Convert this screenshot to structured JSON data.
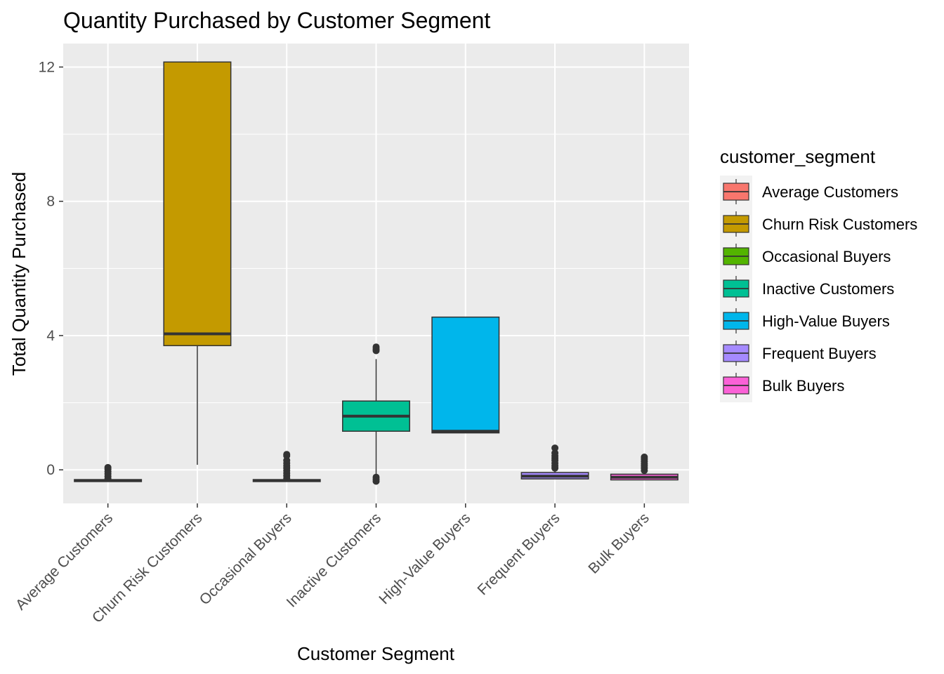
{
  "chart_data": {
    "type": "boxplot",
    "title": "Quantity Purchased by Customer Segment",
    "xlabel": "Customer Segment",
    "ylabel": "Total Quantity Purchased",
    "ylim": [
      -1.0,
      12.7
    ],
    "yticks": [
      0,
      4,
      8,
      12
    ],
    "grid": true,
    "legend": {
      "title": "customer_segment",
      "position": "right"
    },
    "categories": [
      "Average Customers",
      "Churn Risk Customers",
      "Occasional Buyers",
      "Inactive Customers",
      "High-Value Buyers",
      "Frequent Buyers",
      "Bulk Buyers"
    ],
    "series": [
      {
        "name": "Average Customers",
        "color": "#F8766D",
        "q1": -0.35,
        "median": -0.32,
        "q3": -0.29,
        "whisker_low": -0.35,
        "whisker_high": -0.29,
        "outliers": [
          -0.26,
          -0.2,
          -0.12,
          -0.05,
          0.02,
          0.07
        ]
      },
      {
        "name": "Churn Risk Customers",
        "color": "#C49A00",
        "q1": 3.7,
        "median": 4.05,
        "q3": 12.15,
        "whisker_low": 0.15,
        "whisker_high": 12.15,
        "outliers": []
      },
      {
        "name": "Occasional Buyers",
        "color": "#53B400",
        "q1": -0.35,
        "median": -0.32,
        "q3": -0.29,
        "whisker_low": -0.35,
        "whisker_high": -0.29,
        "outliers": [
          -0.25,
          -0.18,
          -0.1,
          -0.02,
          0.05,
          0.12,
          0.2,
          0.28,
          0.42,
          0.46
        ]
      },
      {
        "name": "Inactive Customers",
        "color": "#00C094",
        "q1": 1.15,
        "median": 1.6,
        "q3": 2.05,
        "whisker_low": -0.2,
        "whisker_high": 3.3,
        "outliers": [
          -0.22,
          -0.28,
          -0.34,
          3.55,
          3.6,
          3.66
        ]
      },
      {
        "name": "High-Value Buyers",
        "color": "#00B6EB",
        "q1": 1.1,
        "median": 1.15,
        "q3": 4.55,
        "whisker_low": 1.1,
        "whisker_high": 4.55,
        "outliers": []
      },
      {
        "name": "Frequent Buyers",
        "color": "#A58AFF",
        "q1": -0.27,
        "median": -0.19,
        "q3": -0.08,
        "whisker_low": -0.27,
        "whisker_high": -0.02,
        "outliers": [
          0.05,
          0.12,
          0.2,
          0.28,
          0.35,
          0.42,
          0.5,
          0.65
        ]
      },
      {
        "name": "Bulk Buyers",
        "color": "#FB61D7",
        "q1": -0.3,
        "median": -0.22,
        "q3": -0.13,
        "whisker_low": -0.3,
        "whisker_high": -0.08,
        "outliers": [
          -0.02,
          0.05,
          0.12,
          0.18,
          0.25,
          0.32,
          0.38
        ]
      }
    ]
  },
  "colors": {
    "panel_background": "#EBEBEB",
    "grid": "#FFFFFF",
    "box_outline": "#333333"
  }
}
